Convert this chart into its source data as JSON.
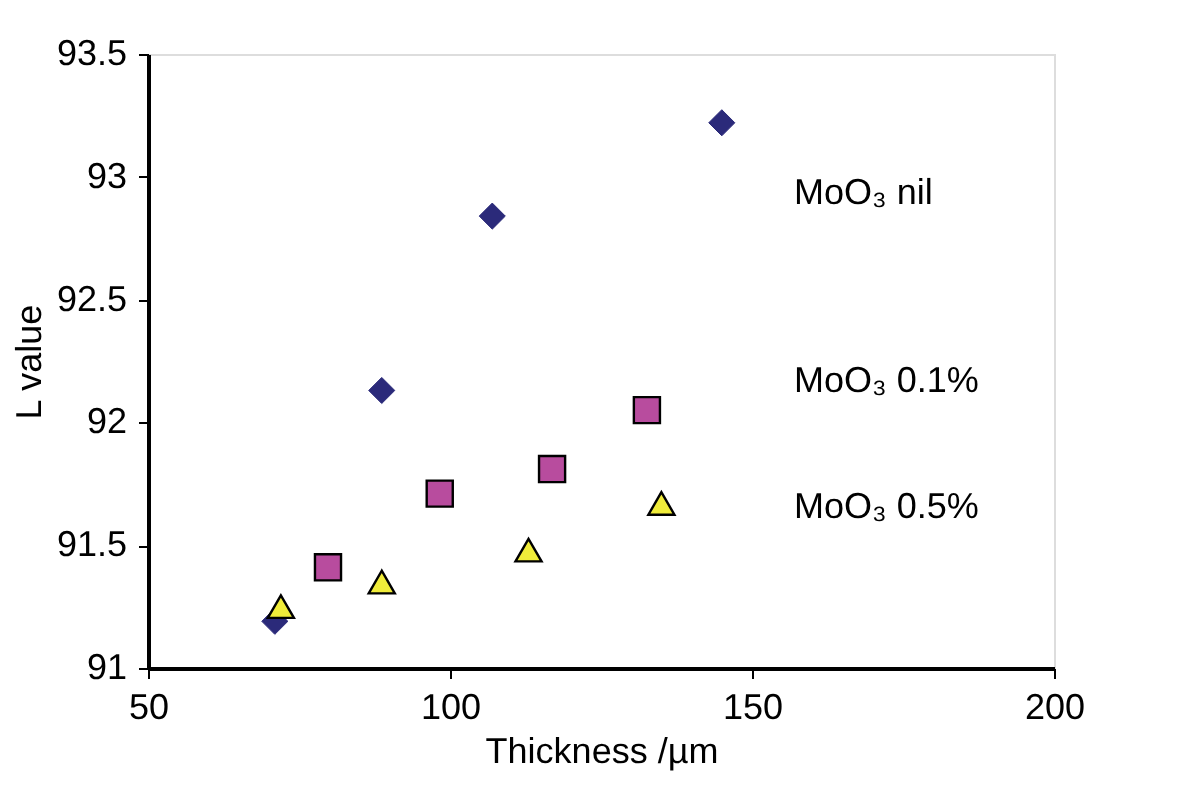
{
  "chart_data": {
    "type": "scatter",
    "xlabel": "Thickness /µm",
    "ylabel": "L value",
    "xlim": [
      50,
      200
    ],
    "xticks": [
      50,
      100,
      150,
      200
    ],
    "ylim": [
      91,
      93.5
    ],
    "yticks": [
      91,
      91.5,
      92,
      92.5,
      93,
      93.5
    ],
    "grid": false,
    "legend": false,
    "series": [
      {
        "name": "MoO₃ nil",
        "color": "#2b2a7a",
        "marker": "diamond",
        "x": [
          71,
          88.7,
          107,
          145
        ],
        "values": [
          91.19,
          92.13,
          92.84,
          93.22
        ]
      },
      {
        "name": "MoO₃ 0.1%",
        "color": "#b84c9e",
        "marker": "square",
        "x": [
          79.8,
          98.3,
          116.9,
          132.6
        ],
        "values": [
          91.41,
          91.71,
          91.81,
          92.05
        ]
      },
      {
        "name": "MoO₃ 0.5%",
        "color": "#f0ec3a",
        "marker": "triangle",
        "x": [
          72,
          88.7,
          113,
          135
        ],
        "values": [
          91.25,
          91.35,
          91.48,
          91.67
        ]
      }
    ]
  }
}
